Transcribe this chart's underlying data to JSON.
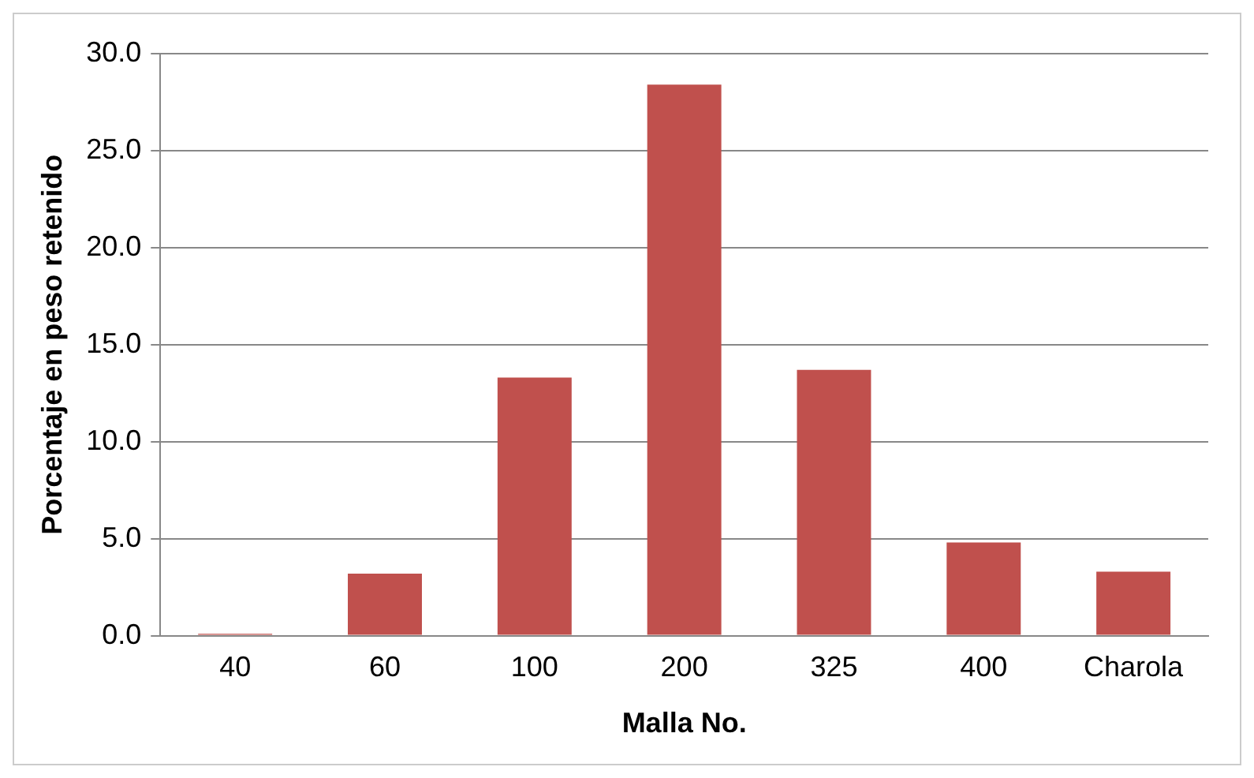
{
  "chart_data": {
    "type": "bar",
    "xlabel": "Malla No.",
    "ylabel": "Porcentaje en peso retenido",
    "categories": [
      "40",
      "60",
      "100",
      "200",
      "325",
      "400",
      "Charola"
    ],
    "series": [
      {
        "color": "#c0504d",
        "values": [
          0.1,
          3.2,
          13.3,
          28.4,
          13.7,
          4.8,
          3.3
        ]
      }
    ],
    "ylim": [
      0,
      30
    ],
    "yticks": [
      {
        "value": 0,
        "label": "0.0"
      },
      {
        "value": 5,
        "label": "5.0"
      },
      {
        "value": 10,
        "label": "10.0"
      },
      {
        "value": 15,
        "label": "15.0"
      },
      {
        "value": 20,
        "label": "20.0"
      },
      {
        "value": 25,
        "label": "25.0"
      },
      {
        "value": 30,
        "label": "30.0"
      }
    ],
    "grid": "y",
    "legend": false
  }
}
